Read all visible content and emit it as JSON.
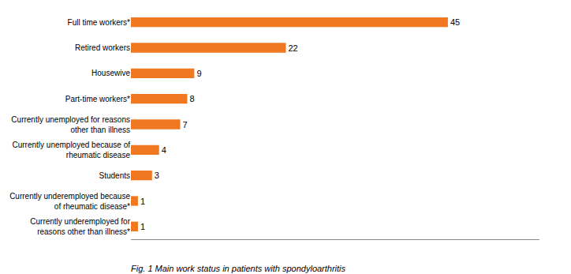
{
  "chart_data": {
    "type": "bar",
    "orientation": "horizontal",
    "title": "Fig. 1 Main work status in patients with spondyloarthritis",
    "categories": [
      "Full time workers*",
      "Retired workers",
      "Housewive",
      "Part-time workers*",
      "Currently unemployed for reasons\nother than illness",
      "Currently unemployed because of\nrheumatic disease",
      "Students",
      "Currently underemployed because\nof rheumatic disease*",
      "Currently underemployed for\nreasons other than illness*"
    ],
    "values": [
      45,
      22,
      9,
      8,
      7,
      4,
      3,
      1,
      1
    ],
    "color": "#F07820",
    "xlim": [
      0,
      58
    ],
    "xticks": [],
    "tick_labels": "y",
    "data_labels": true,
    "grid": false
  }
}
